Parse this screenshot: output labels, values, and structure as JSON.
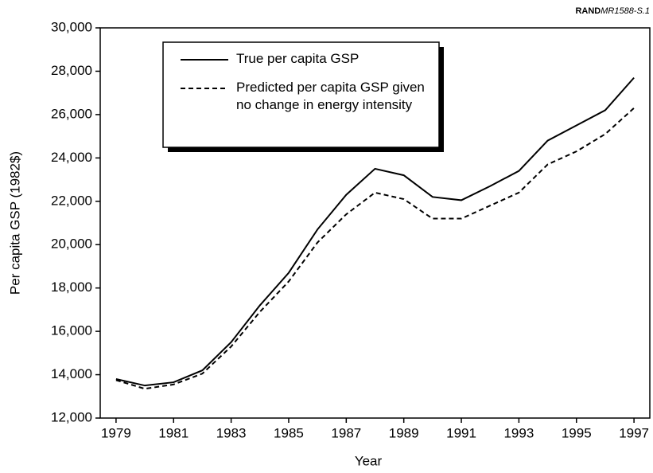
{
  "chart_data": {
    "type": "line",
    "source_prefix": "RAND",
    "source_id": "MR1588-S.1",
    "x_label": "Year",
    "y_label": "Per capita GSP (1982$)",
    "x": [
      1979,
      1980,
      1981,
      1982,
      1983,
      1984,
      1985,
      1986,
      1987,
      1988,
      1989,
      1990,
      1991,
      1992,
      1993,
      1994,
      1995,
      1996,
      1997
    ],
    "series": [
      {
        "name": "True per capita GSP",
        "color": "#000000",
        "dash": "solid",
        "values": [
          13800,
          13500,
          13650,
          14200,
          15500,
          17200,
          18700,
          20700,
          22300,
          23500,
          23200,
          22200,
          22050,
          22700,
          23400,
          24800,
          25500,
          26200,
          27700
        ]
      },
      {
        "name": "Predicted per capita GSP given no change in energy intensity",
        "color": "#000000",
        "dash": "dashed",
        "values": [
          13750,
          13350,
          13550,
          14050,
          15300,
          16900,
          18300,
          20100,
          21400,
          22400,
          22100,
          21200,
          21200,
          21800,
          22400,
          23700,
          24300,
          25100,
          26300
        ]
      }
    ],
    "xlim": [
      1978.45,
      1997.55
    ],
    "xticks": [
      1979,
      1981,
      1983,
      1985,
      1987,
      1989,
      1991,
      1993,
      1995,
      1997
    ],
    "ylim": [
      12000,
      30000
    ],
    "yticks": [
      {
        "value": 12000,
        "label": "12,000"
      },
      {
        "value": 14000,
        "label": "14,000"
      },
      {
        "value": 16000,
        "label": "16,000"
      },
      {
        "value": 18000,
        "label": "18,000"
      },
      {
        "value": 20000,
        "label": "20,000"
      },
      {
        "value": 22000,
        "label": "22,000"
      },
      {
        "value": 24000,
        "label": "24,000"
      },
      {
        "value": 26000,
        "label": "26,000"
      },
      {
        "value": 28000,
        "label": "28,000"
      },
      {
        "value": 30000,
        "label": "30,000"
      }
    ],
    "grid": false,
    "legend": "upper left"
  }
}
